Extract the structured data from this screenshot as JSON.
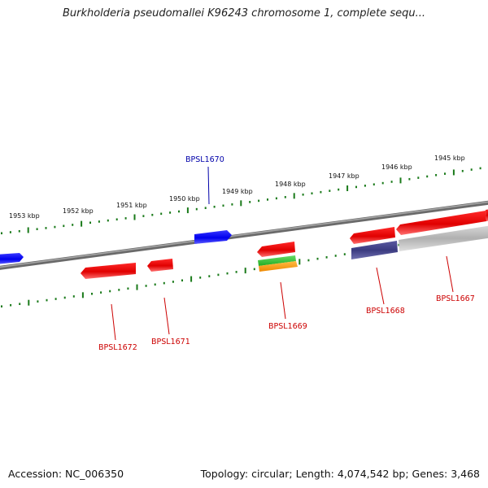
{
  "title": "Burkholderia pseudomallei K96243 chromosome 1, complete sequ...",
  "footer": {
    "accession": "Accession: NC_006350",
    "stats": "Topology: circular; Length: 4,074,542 bp; Genes: 3,468"
  },
  "scale_ticks": [
    "1953 kbp",
    "1952 kbp",
    "1951 kbp",
    "1950 kbp",
    "1949 kbp",
    "1948 kbp",
    "1947 kbp",
    "1946 kbp",
    "1945 kbp"
  ],
  "gene_labels": [
    {
      "text": "BPSL1670",
      "strand": "forward"
    },
    {
      "text": "BPSL1672",
      "strand": "reverse"
    },
    {
      "text": "BPSL1671",
      "strand": "reverse"
    },
    {
      "text": "BPSL1669",
      "strand": "reverse"
    },
    {
      "text": "BPSL1668",
      "strand": "reverse"
    },
    {
      "text": "BPSL1667",
      "strand": "reverse"
    }
  ],
  "colors": {
    "forward_gene": "#0000ee",
    "reverse_gene": "#ee0000",
    "forward_label": "#0000aa",
    "reverse_label": "#cc0000",
    "backbone": "#777777",
    "tick": "#1a7a1a"
  }
}
